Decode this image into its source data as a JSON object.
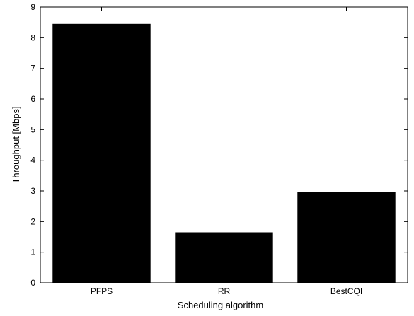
{
  "chart_data": {
    "type": "bar",
    "categories": [
      "PFPS",
      "RR",
      "BestCQI"
    ],
    "values": [
      8.45,
      1.65,
      2.97
    ],
    "xlabel": "Scheduling algorithm",
    "ylabel": "Throughput [Mbps]",
    "ylim": [
      0,
      9
    ],
    "yticks": [
      0,
      1,
      2,
      3,
      4,
      5,
      6,
      7,
      8,
      9
    ],
    "grid": false,
    "bar_color": "#000000",
    "background": "#ffffff"
  }
}
